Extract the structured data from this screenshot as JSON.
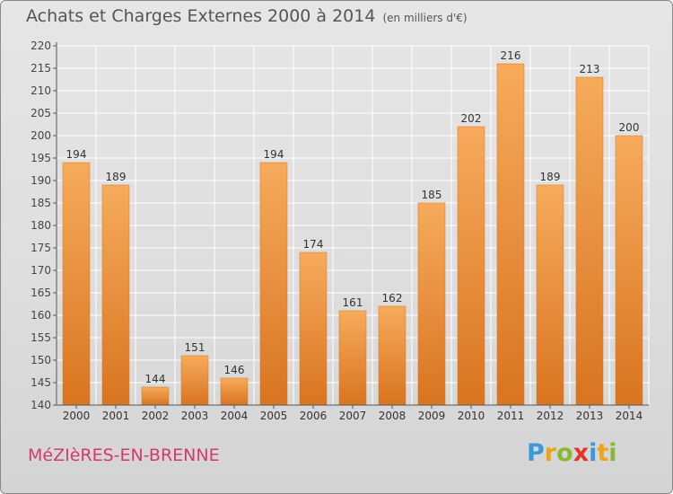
{
  "header": {
    "title": "Achats et Charges Externes 2000 à 2014",
    "unit": "(en milliers d'€)"
  },
  "footer": {
    "town": "MéZIèRES-EN-BRENNE",
    "logo_letters": [
      "P",
      "r",
      "o",
      "x",
      "i",
      "t",
      "i"
    ],
    "logo_colors": [
      "#3a9ad9",
      "#f0a21a",
      "#8ab833",
      "#e2332f",
      "#3a9ad9",
      "#f0a21a",
      "#8ab833"
    ]
  },
  "chart_data": {
    "type": "bar",
    "title": "Achats et Charges Externes 2000 à 2014",
    "subtitle": "(en milliers d'€)",
    "categories": [
      "2000",
      "2001",
      "2002",
      "2003",
      "2004",
      "2005",
      "2006",
      "2007",
      "2008",
      "2009",
      "2010",
      "2011",
      "2012",
      "2013",
      "2014"
    ],
    "values": [
      194,
      189,
      144,
      151,
      146,
      194,
      174,
      161,
      162,
      185,
      202,
      216,
      189,
      213,
      200
    ],
    "ylim": [
      140,
      220
    ],
    "yticks": [
      140,
      145,
      150,
      155,
      160,
      165,
      170,
      175,
      180,
      185,
      190,
      195,
      200,
      205,
      210,
      215,
      220
    ],
    "grid": true,
    "bar_color": "#f0922e",
    "bar_color_light": "#f6ab5b",
    "bar_color_dark": "#d97420",
    "data_labels": true
  }
}
